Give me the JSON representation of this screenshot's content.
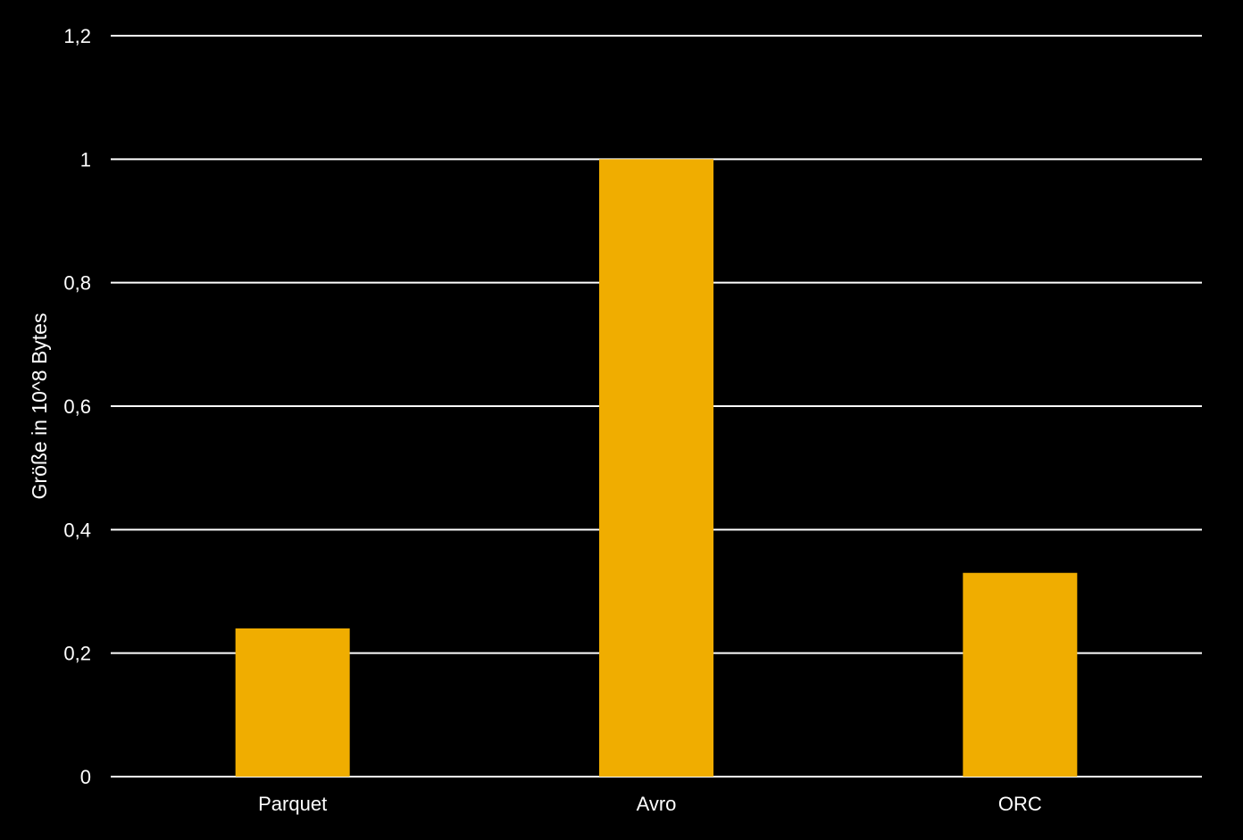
{
  "chart_data": {
    "type": "bar",
    "title": "",
    "xlabel": "",
    "ylabel": "Größe in 10^8 Bytes",
    "categories": [
      "Parquet",
      "Avro",
      "ORC"
    ],
    "series": [
      {
        "values": [
          0.24,
          1.0,
          0.33
        ]
      }
    ],
    "ylim": [
      0,
      1.2
    ],
    "yticks": [
      0,
      0.2,
      0.4,
      0.6,
      0.8,
      1,
      1.2
    ],
    "ytick_labels": [
      "0",
      "0,2",
      "0,4",
      "0,6",
      "0,8",
      "1",
      "1,2"
    ],
    "grid": true,
    "legend": "none"
  },
  "colors": {
    "background": "#000000",
    "bar": "#F0AD00",
    "grid": "#ffffff",
    "text": "#ffffff"
  }
}
